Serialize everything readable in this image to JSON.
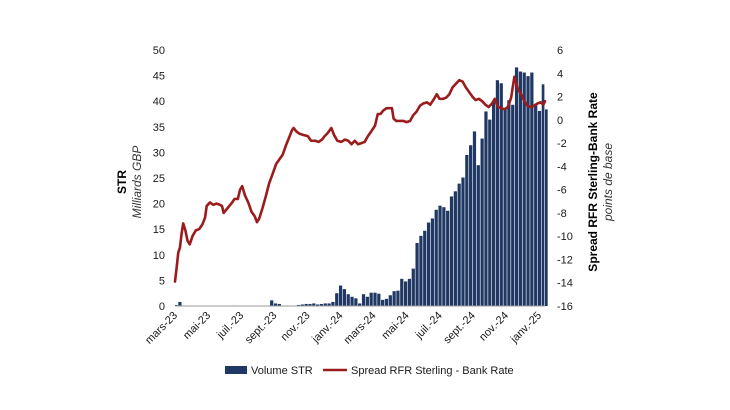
{
  "chart_data": {
    "type": "bar+line",
    "title": "",
    "left_axis": {
      "title": "STR",
      "subtitle": "Milliards GBP",
      "range": [
        0,
        50
      ],
      "ticks": [
        0,
        5,
        10,
        15,
        20,
        25,
        30,
        35,
        40,
        45,
        50
      ]
    },
    "right_axis": {
      "title": "Spread RFR Sterling-Bank Rate",
      "subtitle": "points de base",
      "range": [
        -16,
        6
      ],
      "ticks": [
        -16,
        -14,
        -12,
        -10,
        -8,
        -6,
        -4,
        -2,
        0,
        2,
        4,
        6
      ]
    },
    "x_axis": {
      "range": [
        "2023-03-01",
        "2025-01-06"
      ],
      "tick_labels": [
        "mars-23",
        "mai-23",
        "juil.-23",
        "sept.-23",
        "nov.-23",
        "janv.-24",
        "mars-24",
        "mai-24",
        "juil.-24",
        "sept.-24",
        "nov.-24",
        "janv.-25"
      ]
    },
    "legend": {
      "position": "bottom",
      "entries": [
        "Volume STR",
        "Spread RFR Sterling - Bank Rate"
      ]
    },
    "colors": {
      "bars": "#203864",
      "line": "#9b1c1c"
    },
    "series": [
      {
        "name": "Volume STR",
        "type": "bar",
        "axis": "left",
        "points": [
          [
            "2023-03-01",
            0.2
          ],
          [
            "2023-03-07",
            0.8
          ],
          [
            "2023-03-14",
            0
          ],
          [
            "2023-08-16",
            0
          ],
          [
            "2023-08-22",
            1.1
          ],
          [
            "2023-08-29",
            0.5
          ],
          [
            "2023-09-05",
            0.4
          ],
          [
            "2023-09-12",
            0
          ],
          [
            "2023-10-10",
            0.2
          ],
          [
            "2023-10-17",
            0.3
          ],
          [
            "2023-10-24",
            0.4
          ],
          [
            "2023-10-31",
            0.4
          ],
          [
            "2023-11-07",
            0.5
          ],
          [
            "2023-11-14",
            0.3
          ],
          [
            "2023-11-21",
            0.4
          ],
          [
            "2023-11-28",
            0.5
          ],
          [
            "2023-12-05",
            0.5
          ],
          [
            "2023-12-12",
            0.8
          ],
          [
            "2023-12-19",
            2.5
          ],
          [
            "2023-12-26",
            4.0
          ],
          [
            "2024-01-02",
            3.3
          ],
          [
            "2024-01-09",
            2.3
          ],
          [
            "2024-01-16",
            1.8
          ],
          [
            "2024-01-23",
            1.5
          ],
          [
            "2024-01-30",
            0.5
          ],
          [
            "2024-02-06",
            2.3
          ],
          [
            "2024-02-13",
            1.8
          ],
          [
            "2024-02-20",
            2.6
          ],
          [
            "2024-02-27",
            2.6
          ],
          [
            "2024-03-05",
            2.4
          ],
          [
            "2024-03-12",
            1.2
          ],
          [
            "2024-03-19",
            1.4
          ],
          [
            "2024-03-26",
            2.1
          ],
          [
            "2024-04-02",
            2.9
          ],
          [
            "2024-04-09",
            3.0
          ],
          [
            "2024-04-16",
            5.3
          ],
          [
            "2024-04-23",
            4.8
          ],
          [
            "2024-04-30",
            5.3
          ],
          [
            "2024-05-07",
            7.3
          ],
          [
            "2024-05-14",
            12.3
          ],
          [
            "2024-05-21",
            13.7
          ],
          [
            "2024-05-28",
            14.7
          ],
          [
            "2024-06-04",
            16.3
          ],
          [
            "2024-06-11",
            17.1
          ],
          [
            "2024-06-18",
            18.8
          ],
          [
            "2024-06-25",
            19.6
          ],
          [
            "2024-07-02",
            19.3
          ],
          [
            "2024-07-09",
            18.6
          ],
          [
            "2024-07-16",
            21.4
          ],
          [
            "2024-07-23",
            22.4
          ],
          [
            "2024-07-30",
            23.9
          ],
          [
            "2024-08-06",
            25.1
          ],
          [
            "2024-08-13",
            29.5
          ],
          [
            "2024-08-20",
            31.4
          ],
          [
            "2024-08-27",
            34.1
          ],
          [
            "2024-09-03",
            27.5
          ],
          [
            "2024-09-10",
            32.7
          ],
          [
            "2024-09-17",
            38.0
          ],
          [
            "2024-09-24",
            36.4
          ],
          [
            "2024-10-01",
            39.9
          ],
          [
            "2024-10-08",
            44.1
          ],
          [
            "2024-10-15",
            43.5
          ],
          [
            "2024-10-22",
            38.7
          ],
          [
            "2024-10-29",
            40.2
          ],
          [
            "2024-11-05",
            39.3
          ],
          [
            "2024-11-12",
            46.6
          ],
          [
            "2024-11-19",
            45.8
          ],
          [
            "2024-11-26",
            45.6
          ],
          [
            "2024-12-03",
            44.9
          ],
          [
            "2024-12-10",
            45.6
          ],
          [
            "2024-12-17",
            39.5
          ],
          [
            "2024-12-24",
            38.1
          ],
          [
            "2024-12-31",
            43.3
          ],
          [
            "2025-01-06",
            38.4
          ]
        ]
      },
      {
        "name": "Spread RFR Sterling - Bank Rate",
        "type": "line",
        "axis": "right",
        "points": [
          [
            "2023-03-01",
            -13.9
          ],
          [
            "2023-03-04",
            -12.7
          ],
          [
            "2023-03-07",
            -11.4
          ],
          [
            "2023-03-10",
            -11.0
          ],
          [
            "2023-03-13",
            -9.8
          ],
          [
            "2023-03-16",
            -8.9
          ],
          [
            "2023-03-20",
            -9.5
          ],
          [
            "2023-03-24",
            -10.4
          ],
          [
            "2023-03-28",
            -10.7
          ],
          [
            "2023-04-02",
            -10.0
          ],
          [
            "2023-04-08",
            -9.5
          ],
          [
            "2023-04-14",
            -9.4
          ],
          [
            "2023-04-20",
            -9.0
          ],
          [
            "2023-04-25",
            -8.4
          ],
          [
            "2023-04-28",
            -7.4
          ],
          [
            "2023-05-04",
            -7.1
          ],
          [
            "2023-05-10",
            -7.3
          ],
          [
            "2023-05-16",
            -7.2
          ],
          [
            "2023-05-22",
            -7.3
          ],
          [
            "2023-05-26",
            -7.4
          ],
          [
            "2023-05-29",
            -8.0
          ],
          [
            "2023-06-05",
            -7.6
          ],
          [
            "2023-06-12",
            -7.2
          ],
          [
            "2023-06-18",
            -6.8
          ],
          [
            "2023-06-24",
            -6.8
          ],
          [
            "2023-06-28",
            -6.0
          ],
          [
            "2023-07-02",
            -5.7
          ],
          [
            "2023-07-07",
            -6.5
          ],
          [
            "2023-07-13",
            -7.1
          ],
          [
            "2023-07-19",
            -7.9
          ],
          [
            "2023-07-25",
            -8.3
          ],
          [
            "2023-07-29",
            -8.8
          ],
          [
            "2023-08-02",
            -8.5
          ],
          [
            "2023-08-08",
            -7.6
          ],
          [
            "2023-08-14",
            -6.6
          ],
          [
            "2023-08-20",
            -5.5
          ],
          [
            "2023-08-27",
            -4.6
          ],
          [
            "2023-09-02",
            -3.8
          ],
          [
            "2023-09-08",
            -3.4
          ],
          [
            "2023-09-14",
            -3.0
          ],
          [
            "2023-09-20",
            -2.2
          ],
          [
            "2023-09-26",
            -1.5
          ],
          [
            "2023-10-01",
            -0.9
          ],
          [
            "2023-10-04",
            -0.7
          ],
          [
            "2023-10-09",
            -1.0
          ],
          [
            "2023-10-15",
            -1.2
          ],
          [
            "2023-10-22",
            -1.3
          ],
          [
            "2023-10-30",
            -1.4
          ],
          [
            "2023-11-05",
            -1.8
          ],
          [
            "2023-11-12",
            -1.8
          ],
          [
            "2023-11-19",
            -1.9
          ],
          [
            "2023-11-25",
            -1.7
          ],
          [
            "2023-11-30",
            -1.4
          ],
          [
            "2023-12-06",
            -1.1
          ],
          [
            "2023-12-12",
            -0.7
          ],
          [
            "2023-12-17",
            -1.3
          ],
          [
            "2023-12-23",
            -1.8
          ],
          [
            "2023-12-30",
            -1.9
          ],
          [
            "2024-01-06",
            -1.7
          ],
          [
            "2024-01-12",
            -1.8
          ],
          [
            "2024-01-18",
            -2.1
          ],
          [
            "2024-01-24",
            -1.8
          ],
          [
            "2024-01-30",
            -2.1
          ],
          [
            "2024-02-05",
            -2.0
          ],
          [
            "2024-02-11",
            -1.9
          ],
          [
            "2024-02-17",
            -1.4
          ],
          [
            "2024-02-23",
            -1.0
          ],
          [
            "2024-03-01",
            -0.5
          ],
          [
            "2024-03-06",
            0.5
          ],
          [
            "2024-03-11",
            0.5
          ],
          [
            "2024-03-16",
            0.8
          ],
          [
            "2024-03-22",
            1.0
          ],
          [
            "2024-03-28",
            1.0
          ],
          [
            "2024-04-01",
            1.0
          ],
          [
            "2024-04-04",
            0.1
          ],
          [
            "2024-04-09",
            -0.1
          ],
          [
            "2024-04-15",
            -0.1
          ],
          [
            "2024-04-22",
            -0.1
          ],
          [
            "2024-04-28",
            -0.2
          ],
          [
            "2024-05-04",
            -0.1
          ],
          [
            "2024-05-10",
            0.4
          ],
          [
            "2024-05-16",
            0.7
          ],
          [
            "2024-05-22",
            1.2
          ],
          [
            "2024-05-28",
            1.4
          ],
          [
            "2024-06-04",
            1.5
          ],
          [
            "2024-06-10",
            1.3
          ],
          [
            "2024-06-17",
            1.8
          ],
          [
            "2024-06-22",
            2.2
          ],
          [
            "2024-06-27",
            1.8
          ],
          [
            "2024-07-03",
            1.8
          ],
          [
            "2024-07-09",
            1.9
          ],
          [
            "2024-07-15",
            2.2
          ],
          [
            "2024-07-21",
            2.8
          ],
          [
            "2024-07-27",
            3.1
          ],
          [
            "2024-08-02",
            3.4
          ],
          [
            "2024-08-08",
            3.3
          ],
          [
            "2024-08-14",
            2.8
          ],
          [
            "2024-08-20",
            2.4
          ],
          [
            "2024-08-26",
            2.0
          ],
          [
            "2024-09-01",
            1.7
          ],
          [
            "2024-09-07",
            1.8
          ],
          [
            "2024-09-13",
            1.6
          ],
          [
            "2024-09-19",
            1.3
          ],
          [
            "2024-09-25",
            1.1
          ],
          [
            "2024-10-01",
            1.4
          ],
          [
            "2024-10-06",
            1.8
          ],
          [
            "2024-10-12",
            1.1
          ],
          [
            "2024-10-18",
            1.0
          ],
          [
            "2024-10-24",
            0.9
          ],
          [
            "2024-10-30",
            1.1
          ],
          [
            "2024-11-05",
            1.9
          ],
          [
            "2024-11-11",
            3.7
          ],
          [
            "2024-11-17",
            2.7
          ],
          [
            "2024-11-23",
            2.2
          ],
          [
            "2024-11-29",
            1.6
          ],
          [
            "2024-12-05",
            1.2
          ],
          [
            "2024-12-11",
            1.1
          ],
          [
            "2024-12-17",
            1.2
          ],
          [
            "2024-12-23",
            1.4
          ],
          [
            "2024-12-29",
            1.5
          ],
          [
            "2025-01-03",
            1.3
          ],
          [
            "2025-01-06",
            1.6
          ]
        ]
      }
    ]
  }
}
